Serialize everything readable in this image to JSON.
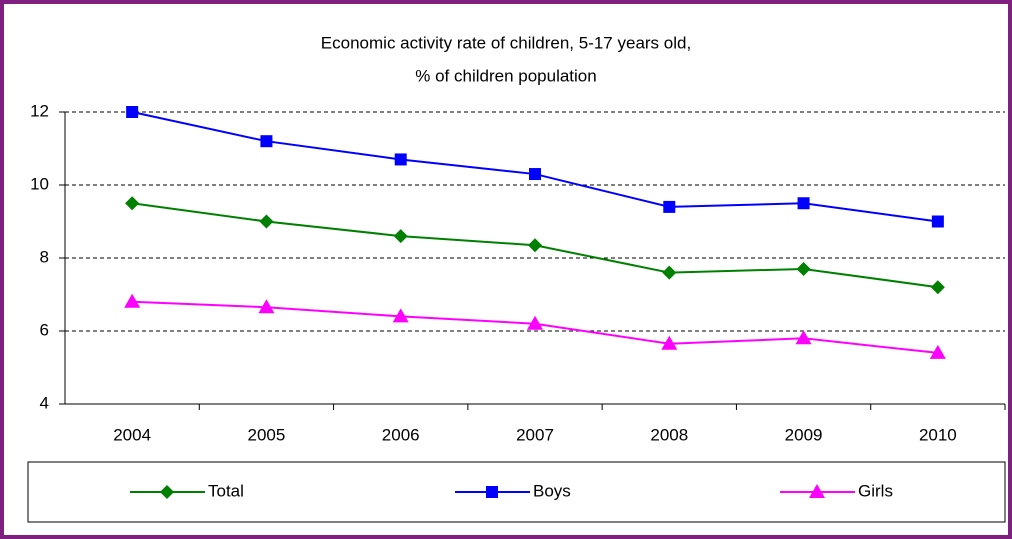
{
  "chart_data": {
    "type": "line",
    "title": [
      "Economic activity rate of children, 5-17 years old,",
      "% of children population"
    ],
    "categories": [
      "2004",
      "2005",
      "2006",
      "2007",
      "2008",
      "2009",
      "2010"
    ],
    "series": [
      {
        "name": "Total",
        "color": "#008000",
        "marker": "diamond",
        "values": [
          9.5,
          9.0,
          8.6,
          8.35,
          7.6,
          7.7,
          7.2
        ]
      },
      {
        "name": "Boys",
        "color": "#0000ff",
        "marker": "square",
        "values": [
          12.0,
          11.2,
          10.7,
          10.3,
          9.4,
          9.5,
          9.0
        ]
      },
      {
        "name": "Girls",
        "color": "#ff00ff",
        "marker": "triangle",
        "values": [
          6.8,
          6.65,
          6.4,
          6.2,
          5.65,
          5.8,
          5.4
        ]
      }
    ],
    "ylim": [
      4,
      12
    ],
    "yticks": [
      4,
      6,
      8,
      10,
      12
    ],
    "grid": true,
    "legend": "bottom"
  }
}
